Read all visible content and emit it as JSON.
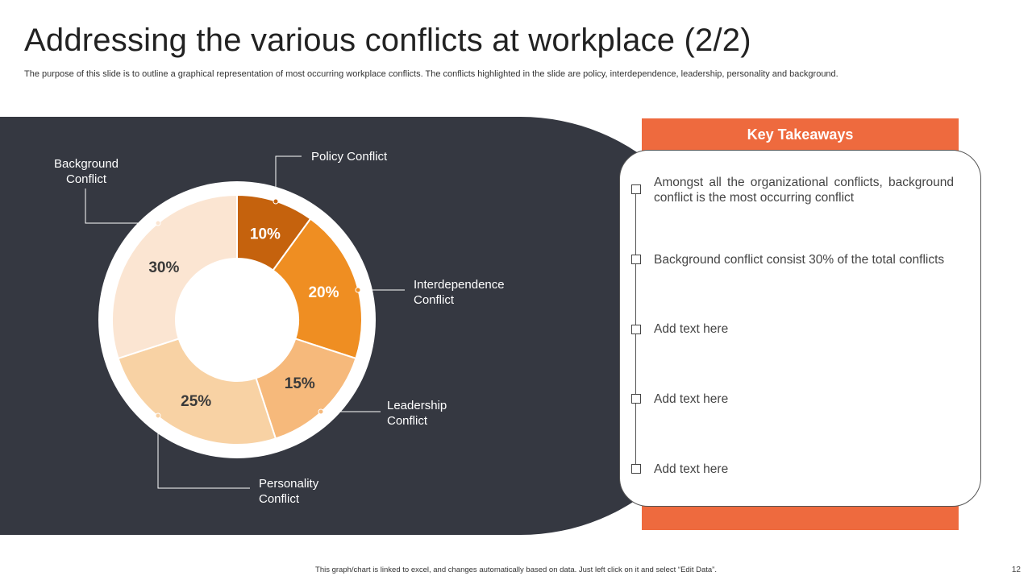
{
  "header": {
    "title": "Addressing the various conflicts at workplace (2/2)",
    "subtitle": "The purpose of this slide is to outline a graphical representation of most occurring workplace conflicts. The conflicts highlighted in the slide are policy, interdependence, leadership, personality and background."
  },
  "chart_data": {
    "type": "pie",
    "title": "",
    "categories": [
      "Policy Conflict",
      "Interdependence Conflict",
      "Leadership Conflict",
      "Personality Conflict",
      "Background Conflict"
    ],
    "values": [
      10,
      20,
      15,
      25,
      30
    ],
    "value_labels": [
      "10%",
      "20%",
      "15%",
      "25%",
      "30%"
    ],
    "label_lines": [
      [
        "Policy Conflict"
      ],
      [
        "Interdependence",
        "Conflict"
      ],
      [
        "Leadership",
        "Conflict"
      ],
      [
        "Personality",
        "Conflict"
      ],
      [
        "Background",
        "Conflict"
      ]
    ],
    "colors": [
      "#c5620d",
      "#ef8e22",
      "#f6b97b",
      "#f8d2a4",
      "#fbe5d2"
    ],
    "label_text_colors": [
      "#ffffff",
      "#ffffff",
      "#3a3a3a",
      "#3a3a3a",
      "#3a3a3a"
    ],
    "donut": true
  },
  "key_takeaways": {
    "title": "Key Takeaways",
    "items": [
      "Amongst all the organizational conflicts, background conflict is the most occurring conflict",
      "Background conflict consist 30% of the total conflicts",
      "Add text here",
      "Add text here",
      "Add text here"
    ]
  },
  "footer": {
    "note": "This graph/chart is linked to excel, and changes automatically based on data. Just left click on it and select “Edit Data”.",
    "page_number": "12"
  },
  "colors": {
    "accent": "#ee6a3e",
    "panel": "#353841"
  }
}
